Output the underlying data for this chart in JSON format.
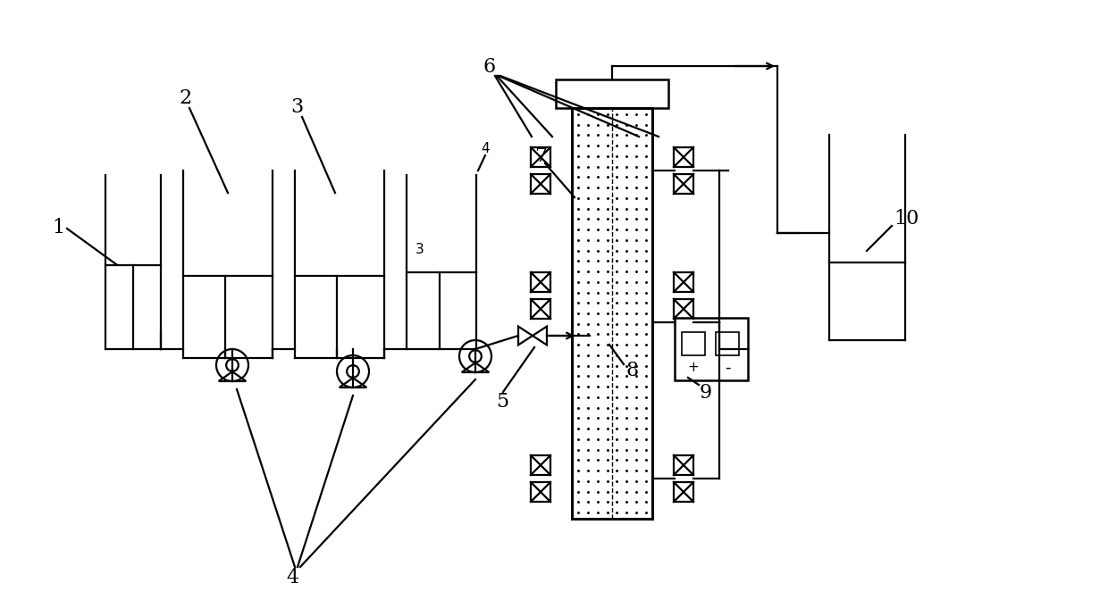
{
  "bg_color": "#ffffff",
  "line_color": "#000000",
  "lw": 1.6,
  "fig_width": 12.4,
  "fig_height": 6.81
}
